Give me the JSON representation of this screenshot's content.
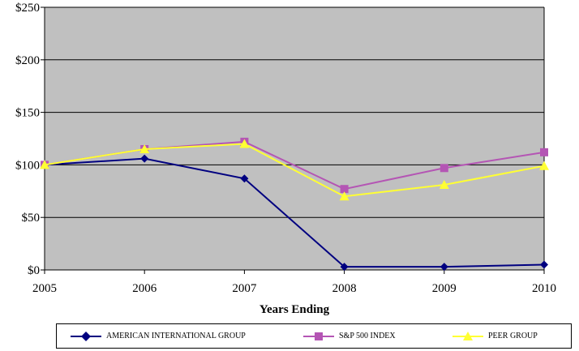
{
  "chart_data": {
    "type": "line",
    "title": "",
    "xlabel": "Years Ending",
    "ylabel": "",
    "x": [
      "2005",
      "2006",
      "2007",
      "2008",
      "2009",
      "2010"
    ],
    "ylim": [
      0,
      250
    ],
    "yticks": [
      "$0",
      "$50",
      "$100",
      "$150",
      "$200",
      "$250"
    ],
    "ytick_values": [
      0,
      50,
      100,
      150,
      200,
      250
    ],
    "grid": true,
    "plot_background": "#C0C0C0",
    "legend_position": "bottom",
    "series": [
      {
        "name": "AMERICAN INTERNATIONAL GROUP",
        "color": "#000080",
        "marker": "diamond",
        "values": [
          100,
          106,
          87,
          3,
          3,
          5
        ]
      },
      {
        "name": "S&P 500 INDEX",
        "color": "#B455B4",
        "marker": "square",
        "values": [
          100,
          115,
          122,
          77,
          97,
          112
        ]
      },
      {
        "name": "PEER GROUP",
        "color": "#FFFF33",
        "marker": "triangle",
        "values": [
          100,
          115,
          120,
          70,
          81,
          99
        ]
      }
    ]
  }
}
